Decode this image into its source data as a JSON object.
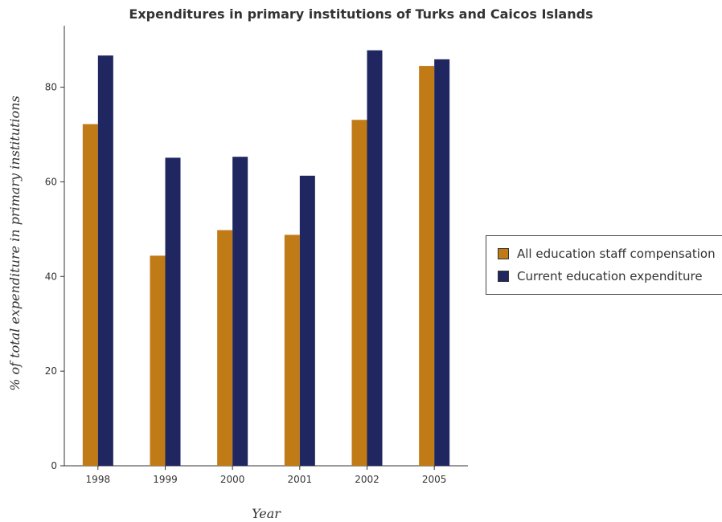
{
  "title": "Expenditures in primary institutions of Turks and Caicos Islands",
  "chart_data": {
    "type": "bar",
    "title": "Expenditures in primary institutions of Turks and Caicos Islands",
    "xlabel": "Year",
    "ylabel": "% of total expenditure in primary institutions",
    "categories": [
      "1998",
      "1999",
      "2000",
      "2001",
      "2002",
      "2005"
    ],
    "ylim": [
      0,
      93
    ],
    "yticks": [
      0,
      20,
      40,
      60,
      80
    ],
    "series": [
      {
        "name": "All education staff compensation",
        "color": "#c07a16",
        "values": [
          72.2,
          44.4,
          49.8,
          48.8,
          73.1,
          84.5
        ]
      },
      {
        "name": "Current education expenditure",
        "color": "#1f2660",
        "values": [
          86.7,
          65.1,
          65.3,
          61.3,
          87.8,
          85.9
        ]
      }
    ],
    "legend_position": "right",
    "grid": false
  }
}
